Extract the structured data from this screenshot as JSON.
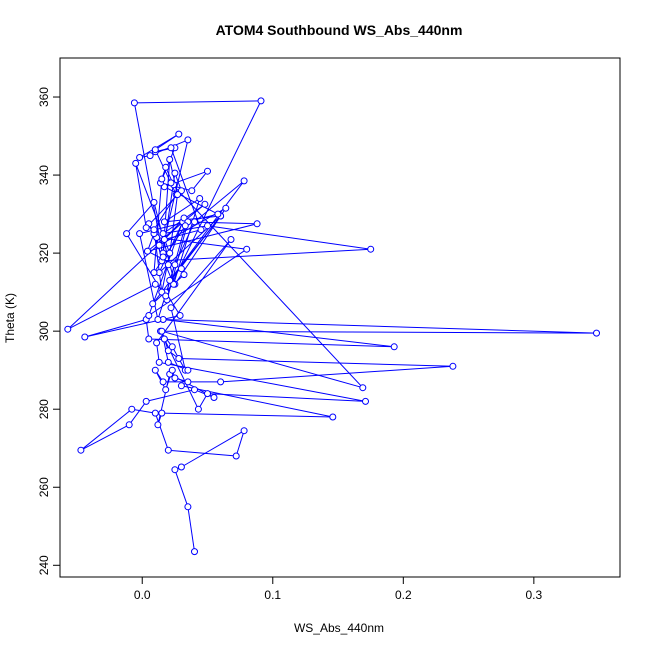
{
  "chart_data": {
    "type": "line",
    "title": "ATOM4 Southbound WS_Abs_440nm",
    "xlabel": "WS_Abs_440nm",
    "ylabel": "Theta (K)",
    "xlim": [
      -0.063,
      0.366
    ],
    "ylim": [
      237,
      370
    ],
    "x_ticks": [
      0.0,
      0.1,
      0.2,
      0.3
    ],
    "x_tick_labels": [
      "0.0",
      "0.1",
      "0.2",
      "0.3"
    ],
    "y_ticks": [
      240,
      260,
      280,
      300,
      320,
      340,
      360
    ],
    "y_tick_labels": [
      "240",
      "260",
      "280",
      "300",
      "320",
      "340",
      "360"
    ],
    "grid": false,
    "marker": "open-circle",
    "color": "#0000ff",
    "series": [
      {
        "x": [
          0.04,
          0.035,
          0.025,
          0.03,
          0.078,
          0.072,
          0.02,
          0.01,
          -0.008,
          -0.047,
          -0.01,
          0.003,
          0.04,
          0.055,
          0.021,
          0.012,
          0.015,
          0.146,
          0.03,
          0.035,
          0.025,
          0.023,
          0.018,
          0.01,
          0.016,
          0.06,
          0.238,
          0.028,
          0.02,
          0.017,
          0.043,
          0.05,
          0.171,
          0.013,
          0.011,
          0.068,
          0.022,
          0.033,
          0.023,
          0.014,
          0.348,
          0.016,
          0.193,
          0.005,
          0.003,
          -0.044,
          0.029,
          0.018,
          0.01,
          -0.057,
          0.031,
          0.013,
          0.06,
          0.008,
          0.032,
          0.03,
          0.004,
          0.048,
          0.016,
          0.05,
          0.175,
          0.015,
          0.011,
          0.08,
          0.005,
          0.032,
          0.013,
          0.064,
          0.025,
          0.009,
          -0.012,
          0.019,
          0.035,
          0.088,
          0.004,
          0.009,
          0.005,
          0.024,
          0.044,
          0.017,
          0.06,
          0.021,
          0.078,
          0.04,
          0.025,
          0.012,
          -0.002,
          0.058,
          0.017,
          0.05,
          0.038,
          0.014,
          0.025,
          0.01,
          0.022,
          0.045,
          0.017,
          0.035,
          0.006,
          -0.002,
          0.028,
          0.01,
          0.026,
          0.009,
          0.015,
          0.021,
          -0.005,
          0.003,
          0.03,
          0.025,
          0.016,
          0.021,
          0.027,
          0.02,
          0.016,
          -0.006,
          0.091,
          0.018,
          0.033,
          0.009,
          0.015,
          0.018,
          0.024,
          0.022,
          0.169,
          0.015,
          0.02,
          0.035
        ],
        "y": [
          243.5,
          255,
          264.5,
          265.2,
          274.5,
          268,
          269.5,
          279,
          280,
          269.5,
          276,
          282,
          285,
          283,
          289,
          276,
          279,
          278,
          286,
          287,
          288,
          290,
          285,
          290,
          287,
          287,
          291,
          293,
          295,
          298,
          280,
          284,
          282,
          292,
          297,
          323.5,
          306,
          290,
          296,
          300,
          299.5,
          303,
          296,
          298,
          303,
          298.5,
          304,
          310,
          312,
          300.5,
          328,
          315,
          329.5,
          307,
          314.5,
          316,
          320.5,
          332.5,
          325,
          327,
          321,
          318,
          324,
          321,
          304,
          329,
          322,
          331.5,
          312,
          333,
          325,
          308,
          328,
          327.5,
          320.5,
          325,
          327.5,
          312,
          334,
          328,
          329.5,
          313,
          338.5,
          328,
          317,
          303,
          325,
          330,
          337,
          341,
          336,
          338,
          347,
          346,
          347,
          326,
          323.5,
          349,
          345,
          344.5,
          350.5,
          346.5,
          335,
          326,
          310,
          320,
          343,
          326.5,
          336,
          340.5,
          320,
          344,
          335,
          317,
          319,
          358.5,
          359,
          309,
          327,
          315,
          339,
          342,
          337.5,
          338,
          285.5,
          300,
          292,
          290
        ]
      }
    ]
  }
}
